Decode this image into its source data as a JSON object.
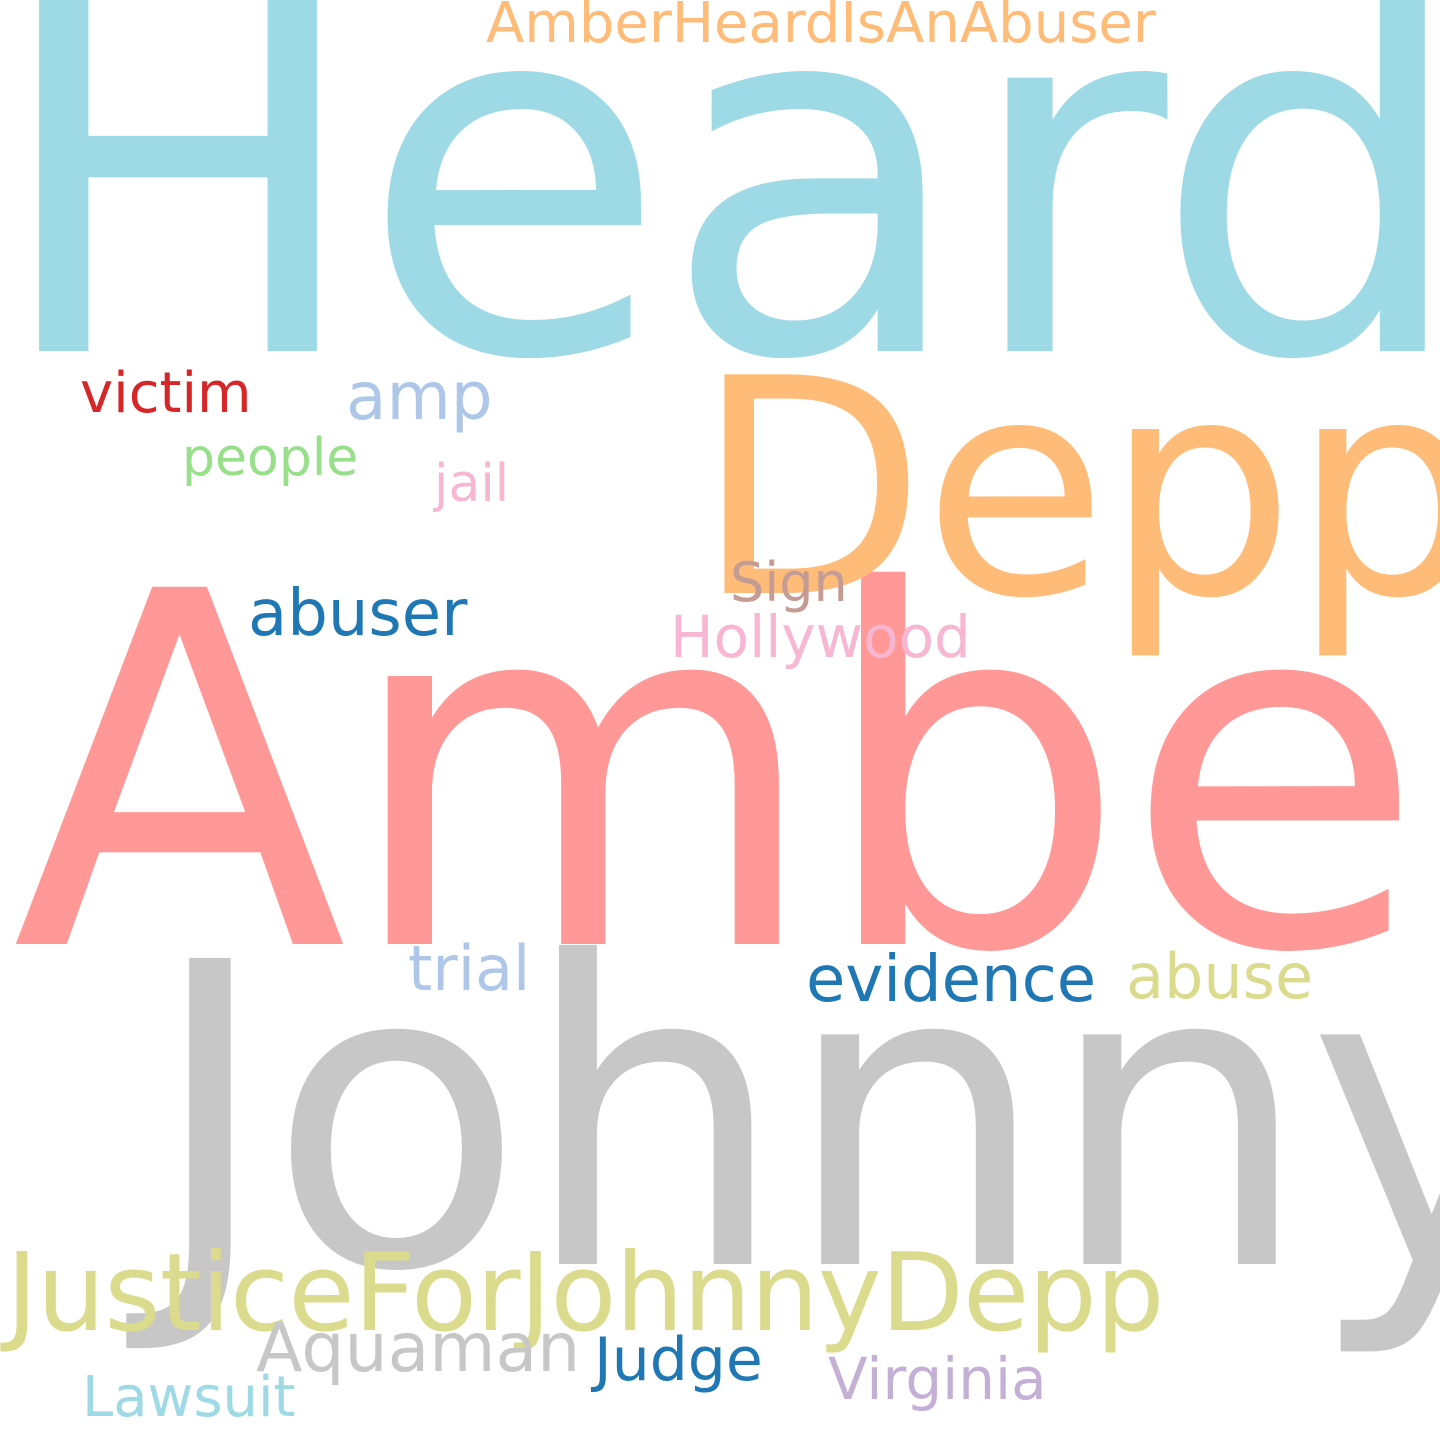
{
  "words": [
    {
      "text": "Heard",
      "color": "#9edae5"
    },
    {
      "text": "Amber",
      "color": "#ff9896"
    },
    {
      "text": "Johnny",
      "color": "#c7c7c7"
    },
    {
      "text": "Depp",
      "color": "#ffbb78"
    },
    {
      "text": "JusticeForJohnnyDepp",
      "color": "#dbdb8d"
    },
    {
      "text": "AmberHeardIsAnAbuser",
      "color": "#ffbb78"
    },
    {
      "text": "Aquaman",
      "color": "#c7c7c7"
    },
    {
      "text": "abuser",
      "color": "#1f77b4"
    },
    {
      "text": "evidence",
      "color": "#1f77b4"
    },
    {
      "text": "abuse",
      "color": "#dbdb8d"
    },
    {
      "text": "trial",
      "color": "#aec7e8"
    },
    {
      "text": "amp",
      "color": "#aec7e8"
    },
    {
      "text": "victim",
      "color": "#d62728"
    },
    {
      "text": "people",
      "color": "#98df8a"
    },
    {
      "text": "jail",
      "color": "#f7b6d2"
    },
    {
      "text": "Sign",
      "color": "#c49c94"
    },
    {
      "text": "Hollywood",
      "color": "#f7b6d2"
    },
    {
      "text": "Judge",
      "color": "#1f77b4"
    },
    {
      "text": "Virginia",
      "color": "#c5b0d5"
    },
    {
      "text": "Lawsuit",
      "color": "#9edae5"
    }
  ]
}
